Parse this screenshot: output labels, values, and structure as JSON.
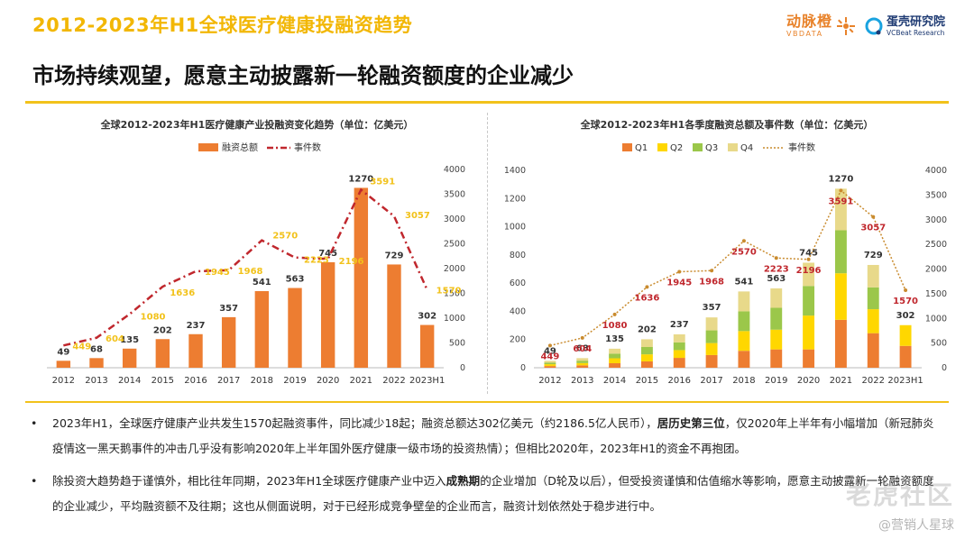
{
  "header": {
    "top_title": "2012-2023年H1全球医疗健康投融资趋势",
    "subtitle": "市场持续观望，愿意主动披露新一轮融资额度的企业减少",
    "logo_vbdata_cn": "动脉橙",
    "logo_vbdata_en": "VBDATA",
    "logo_vcbeat_cn": "蛋壳研究院",
    "logo_vcbeat_en": "VCBeat Research"
  },
  "colors": {
    "orange": "#ed7d31",
    "yellow": "#ffd700",
    "green": "#9bc74a",
    "light_yellow": "#e8d98a",
    "line_red": "#c0272d",
    "label_yellow": "#f2c21b"
  },
  "chart_data": [
    {
      "type": "bar",
      "title": "全球2012-2023年H1医疗健康产业投融资变化趋势（单位：亿美元）",
      "legend": [
        "融资总额",
        "事件数"
      ],
      "categories": [
        "2012",
        "2013",
        "2014",
        "2015",
        "2016",
        "2017",
        "2018",
        "2019",
        "2020",
        "2021",
        "2022",
        "2023H1"
      ],
      "series": [
        {
          "name": "融资总额",
          "kind": "bar",
          "values": [
            49,
            68,
            135,
            202,
            237,
            357,
            541,
            563,
            745,
            1270,
            729,
            302
          ]
        },
        {
          "name": "事件数",
          "kind": "line",
          "axis": "right",
          "values": [
            449,
            604,
            1080,
            1636,
            1945,
            1968,
            2570,
            2223,
            2196,
            3591,
            3057,
            1570
          ]
        }
      ],
      "ylim_left": [
        0,
        1400
      ],
      "ylim_right": [
        0,
        4000
      ],
      "right_ticks": [
        0,
        500,
        1000,
        1500,
        2000,
        2500,
        3000,
        3500,
        4000
      ]
    },
    {
      "type": "bar",
      "title": "全球2012-2023年H1各季度融资总额及事件数（单位：亿美元）",
      "legend": [
        "Q1",
        "Q2",
        "Q3",
        "Q4",
        "事件数"
      ],
      "categories": [
        "2012",
        "2013",
        "2014",
        "2015",
        "2016",
        "2017",
        "2018",
        "2019",
        "2020",
        "2021",
        "2022",
        "2023H1"
      ],
      "series": [
        {
          "name": "Q1",
          "kind": "stacked",
          "values": [
            12,
            17,
            32,
            45,
            70,
            90,
            120,
            130,
            130,
            340,
            245,
            155
          ]
        },
        {
          "name": "Q2",
          "kind": "stacked",
          "values": [
            13,
            16,
            35,
            50,
            55,
            85,
            140,
            140,
            240,
            330,
            170,
            147
          ]
        },
        {
          "name": "Q3",
          "kind": "stacked",
          "values": [
            12,
            17,
            33,
            52,
            55,
            90,
            140,
            155,
            210,
            305,
            155,
            0
          ]
        },
        {
          "name": "Q4",
          "kind": "stacked",
          "values": [
            12,
            18,
            35,
            55,
            57,
            92,
            141,
            138,
            165,
            295,
            159,
            0
          ]
        },
        {
          "name": "事件数",
          "kind": "line",
          "axis": "right",
          "values": [
            449,
            604,
            1080,
            1636,
            1945,
            1968,
            2570,
            2223,
            2196,
            3591,
            3057,
            1570
          ]
        }
      ],
      "totals": [
        49,
        68,
        135,
        202,
        237,
        357,
        541,
        563,
        745,
        1270,
        729,
        302
      ],
      "ylim_left": [
        0,
        1400
      ],
      "left_ticks": [
        0,
        200,
        400,
        600,
        800,
        1000,
        1200,
        1400
      ],
      "ylim_right": [
        0,
        4000
      ],
      "right_ticks": [
        0,
        500,
        1000,
        1500,
        2000,
        2500,
        3000,
        3500,
        4000
      ]
    }
  ],
  "notes": [
    {
      "bullet": "•",
      "text_a": "2023年H1，全球医疗健康产业共发生1570起融资事件，同比减少18起；融资总额达302亿美元（约2186.5亿人民币），",
      "bold": "居历史第三位",
      "text_b": "，仅2020年上半年有小幅增加（新冠肺炎疫情这一黑天鹅事件的冲击几乎没有影响2020年上半年国外医疗健康一级市场的投资热情）；但相比2020年，2023年H1的资金不再抱团。"
    },
    {
      "bullet": "•",
      "text_a": "除投资大趋势趋于谨慎外，相比往年同期，2023年H1全球医疗健康产业中迈入",
      "bold": "成熟期",
      "text_b": "的企业增加（D轮及以后），但受投资谨慎和估值缩水等影响，愿意主动披露新一轮融资额度的企业减少，平均融资额不及往期；这也从侧面说明，对于已经形成竞争壁垒的企业而言，融资计划依然处于稳步进行中。"
    }
  ],
  "watermark": {
    "main": "老虎社区",
    "credit": "@营销人星球"
  }
}
